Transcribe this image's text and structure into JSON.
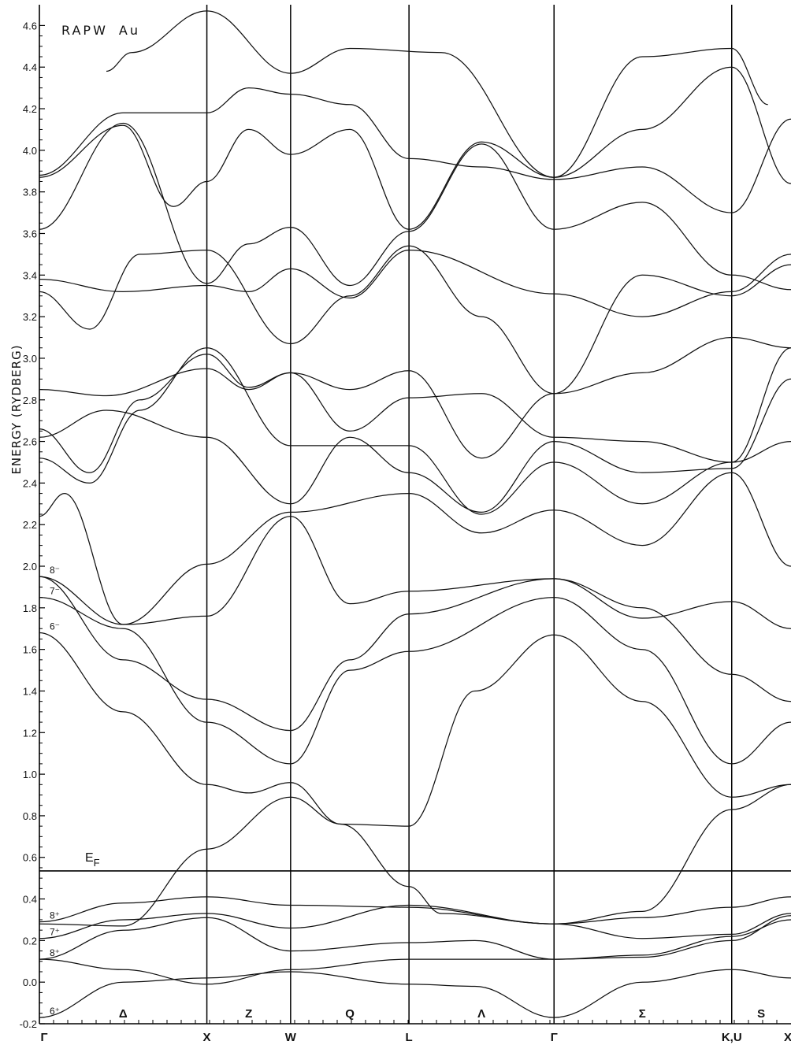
{
  "chart_data": {
    "type": "line",
    "title_lattice": "RAPW",
    "title_element": "Au",
    "ylabel": "ENERGY (RYDBERG)",
    "xlabel": "",
    "ylim": [
      -0.2,
      4.7
    ],
    "yticks": [
      "-0.2",
      "0.0",
      "0.2",
      "0.4",
      "0.6",
      "0.8",
      "1.0",
      "1.2",
      "1.4",
      "1.6",
      "1.8",
      "2.0",
      "2.2",
      "2.4",
      "2.6",
      "2.8",
      "3.0",
      "3.2",
      "3.4",
      "3.6",
      "3.8",
      "4.0",
      "4.2",
      "4.4",
      "4.6"
    ],
    "ytick_values": [
      -0.2,
      0.0,
      0.2,
      0.4,
      0.6,
      0.8,
      1.0,
      1.2,
      1.4,
      1.6,
      1.8,
      2.0,
      2.2,
      2.4,
      2.6,
      2.8,
      3.0,
      3.2,
      3.4,
      3.6,
      3.8,
      4.0,
      4.2,
      4.4,
      4.6
    ],
    "kpoints": [
      {
        "label": "Γ",
        "x": 0
      },
      {
        "label": "X",
        "x": 1
      },
      {
        "label": "W",
        "x": 1.5
      },
      {
        "label": "L",
        "x": 2.207
      },
      {
        "label": "Γ",
        "x": 3.073
      },
      {
        "label": "K,U",
        "x": 4.134
      },
      {
        "label": "X",
        "x": 4.488
      }
    ],
    "segments": [
      {
        "label": "Δ",
        "x": 0.5
      },
      {
        "label": "Z",
        "x": 1.25
      },
      {
        "label": "Q",
        "x": 1.854
      },
      {
        "label": "Λ",
        "x": 2.64
      },
      {
        "label": "Σ",
        "x": 3.6
      },
      {
        "label": "S",
        "x": 4.31
      }
    ],
    "fermi": {
      "label_main": "E",
      "label_sub": "F",
      "value": 0.535
    },
    "symmetry_labels": [
      {
        "text": "8⁻",
        "y": 1.95
      },
      {
        "text": "7⁻",
        "y": 1.85
      },
      {
        "text": "6⁻",
        "y": 1.68
      },
      {
        "text": "8⁺",
        "y": 0.29
      },
      {
        "text": "7⁺",
        "y": 0.21
      },
      {
        "text": "8⁺",
        "y": 0.11
      },
      {
        "text": "6⁺",
        "y": -0.17
      }
    ],
    "series": [
      {
        "values": [
          [
            0,
            -0.17
          ],
          [
            0.5,
            0.0
          ],
          [
            1,
            0.02
          ],
          [
            1.5,
            0.05
          ],
          [
            2.207,
            -0.01
          ],
          [
            2.6,
            -0.02
          ],
          [
            3.073,
            -0.17
          ],
          [
            3.6,
            0.0
          ],
          [
            4.134,
            0.06
          ],
          [
            4.488,
            0.02
          ]
        ]
      },
      {
        "values": [
          [
            0,
            0.11
          ],
          [
            0.5,
            0.06
          ],
          [
            1,
            -0.01
          ],
          [
            1.5,
            0.06
          ],
          [
            2.207,
            0.11
          ],
          [
            3.073,
            0.11
          ],
          [
            3.6,
            0.13
          ],
          [
            4.134,
            0.22
          ],
          [
            4.488,
            0.3
          ]
        ]
      },
      {
        "values": [
          [
            0,
            0.11
          ],
          [
            0.5,
            0.25
          ],
          [
            1,
            0.31
          ],
          [
            1.5,
            0.15
          ],
          [
            2.207,
            0.19
          ],
          [
            2.6,
            0.2
          ],
          [
            3.073,
            0.11
          ],
          [
            3.6,
            0.12
          ],
          [
            4.134,
            0.2
          ],
          [
            4.488,
            0.32
          ]
        ]
      },
      {
        "values": [
          [
            0,
            0.21
          ],
          [
            0.5,
            0.3
          ],
          [
            1,
            0.33
          ],
          [
            1.5,
            0.26
          ],
          [
            2.207,
            0.37
          ],
          [
            3.073,
            0.28
          ],
          [
            3.6,
            0.21
          ],
          [
            4.134,
            0.23
          ],
          [
            4.488,
            0.33
          ]
        ]
      },
      {
        "values": [
          [
            0,
            0.29
          ],
          [
            0.5,
            0.38
          ],
          [
            1,
            0.41
          ],
          [
            1.5,
            0.37
          ],
          [
            2.207,
            0.36
          ],
          [
            3.073,
            0.28
          ],
          [
            3.6,
            0.31
          ],
          [
            4.134,
            0.36
          ],
          [
            4.488,
            0.41
          ]
        ]
      },
      {
        "values": [
          [
            0,
            0.28
          ],
          [
            0.5,
            0.27
          ],
          [
            1,
            0.64
          ],
          [
            1.5,
            0.89
          ],
          [
            1.8,
            0.76
          ],
          [
            2.207,
            0.46
          ],
          [
            2.4,
            0.33
          ],
          [
            3.073,
            0.28
          ],
          [
            3.6,
            0.34
          ],
          [
            4.134,
            0.83
          ],
          [
            4.488,
            0.95
          ]
        ]
      },
      {
        "values": [
          [
            0,
            1.68
          ],
          [
            0.5,
            1.3
          ],
          [
            1,
            0.95
          ],
          [
            1.25,
            0.91
          ],
          [
            1.5,
            0.96
          ],
          [
            1.8,
            0.76
          ],
          [
            2.207,
            0.75
          ],
          [
            2.6,
            1.4
          ],
          [
            3.073,
            1.67
          ],
          [
            3.6,
            1.35
          ],
          [
            4.134,
            0.89
          ],
          [
            4.488,
            0.95
          ]
        ]
      },
      {
        "values": [
          [
            0,
            1.85
          ],
          [
            0.5,
            1.7
          ],
          [
            1,
            1.25
          ],
          [
            1.5,
            1.05
          ],
          [
            1.854,
            1.5
          ],
          [
            2.207,
            1.59
          ],
          [
            3.073,
            1.85
          ],
          [
            3.6,
            1.6
          ],
          [
            4.134,
            1.05
          ],
          [
            4.488,
            1.25
          ]
        ]
      },
      {
        "values": [
          [
            0,
            1.95
          ],
          [
            0.5,
            1.55
          ],
          [
            1,
            1.36
          ],
          [
            1.5,
            1.21
          ],
          [
            1.854,
            1.55
          ],
          [
            2.207,
            1.77
          ],
          [
            3.073,
            1.94
          ],
          [
            3.6,
            1.8
          ],
          [
            4.134,
            1.48
          ],
          [
            4.488,
            1.35
          ]
        ]
      },
      {
        "values": [
          [
            0,
            1.95
          ],
          [
            0.5,
            1.72
          ],
          [
            1,
            1.76
          ],
          [
            1.5,
            2.24
          ],
          [
            1.854,
            1.82
          ],
          [
            2.207,
            1.88
          ],
          [
            3.073,
            1.94
          ],
          [
            3.6,
            1.75
          ],
          [
            4.134,
            1.83
          ],
          [
            4.488,
            1.7
          ]
        ]
      },
      {
        "values": [
          [
            0,
            2.24
          ],
          [
            0.15,
            2.35
          ],
          [
            0.5,
            1.72
          ],
          [
            1,
            2.01
          ],
          [
            1.5,
            2.26
          ],
          [
            2.207,
            2.35
          ],
          [
            2.64,
            2.16
          ],
          [
            3.073,
            2.27
          ],
          [
            3.6,
            2.1
          ],
          [
            4.134,
            2.45
          ],
          [
            4.488,
            2.0
          ]
        ]
      },
      {
        "values": [
          [
            0,
            2.52
          ],
          [
            0.3,
            2.4
          ],
          [
            0.6,
            2.75
          ],
          [
            1,
            3.05
          ],
          [
            1.5,
            2.58
          ],
          [
            2.207,
            2.58
          ],
          [
            2.64,
            2.25
          ],
          [
            3.073,
            2.5
          ],
          [
            3.6,
            2.3
          ],
          [
            4.134,
            2.5
          ],
          [
            4.488,
            2.6
          ]
        ]
      },
      {
        "values": [
          [
            0,
            2.62
          ],
          [
            0.4,
            2.75
          ],
          [
            1,
            2.62
          ],
          [
            1.5,
            2.3
          ],
          [
            1.854,
            2.62
          ],
          [
            2.207,
            2.45
          ],
          [
            2.64,
            2.26
          ],
          [
            3.073,
            2.6
          ],
          [
            3.6,
            2.45
          ],
          [
            4.134,
            2.47
          ],
          [
            4.488,
            2.9
          ]
        ]
      },
      {
        "values": [
          [
            0,
            2.66
          ],
          [
            0.3,
            2.45
          ],
          [
            0.6,
            2.8
          ],
          [
            1,
            3.02
          ],
          [
            1.25,
            2.86
          ],
          [
            1.5,
            2.93
          ],
          [
            1.854,
            2.65
          ],
          [
            2.207,
            2.81
          ],
          [
            2.64,
            2.83
          ],
          [
            3.073,
            2.62
          ],
          [
            3.6,
            2.6
          ],
          [
            4.134,
            2.5
          ],
          [
            4.488,
            3.05
          ]
        ]
      },
      {
        "values": [
          [
            0,
            2.85
          ],
          [
            0.4,
            2.82
          ],
          [
            1,
            2.95
          ],
          [
            1.25,
            2.85
          ],
          [
            1.5,
            2.93
          ],
          [
            1.854,
            2.85
          ],
          [
            2.207,
            2.94
          ],
          [
            2.64,
            2.52
          ],
          [
            3.073,
            2.83
          ],
          [
            3.6,
            2.93
          ],
          [
            4.134,
            3.1
          ],
          [
            4.488,
            3.05
          ]
        ]
      },
      {
        "values": [
          [
            0,
            3.32
          ],
          [
            0.3,
            3.14
          ],
          [
            0.6,
            3.5
          ],
          [
            1,
            3.52
          ],
          [
            1.5,
            3.07
          ],
          [
            1.854,
            3.3
          ],
          [
            2.207,
            3.54
          ],
          [
            2.64,
            3.2
          ],
          [
            3.073,
            2.83
          ],
          [
            3.6,
            3.4
          ],
          [
            4.134,
            3.3
          ],
          [
            4.488,
            3.45
          ]
        ]
      },
      {
        "values": [
          [
            0,
            3.38
          ],
          [
            0.5,
            3.32
          ],
          [
            1,
            3.35
          ],
          [
            1.25,
            3.32
          ],
          [
            1.5,
            3.43
          ],
          [
            1.854,
            3.29
          ],
          [
            2.207,
            3.52
          ],
          [
            3.073,
            3.31
          ],
          [
            3.6,
            3.2
          ],
          [
            4.134,
            3.32
          ],
          [
            4.488,
            3.5
          ]
        ]
      },
      {
        "values": [
          [
            0,
            3.62
          ],
          [
            0.5,
            4.13
          ],
          [
            1,
            3.36
          ],
          [
            1.25,
            3.55
          ],
          [
            1.5,
            3.63
          ],
          [
            1.854,
            3.35
          ],
          [
            2.207,
            3.61
          ],
          [
            2.64,
            4.03
          ],
          [
            3.073,
            3.62
          ],
          [
            3.6,
            3.75
          ],
          [
            4.134,
            3.4
          ],
          [
            4.488,
            3.33
          ]
        ]
      },
      {
        "values": [
          [
            0,
            3.87
          ],
          [
            0.5,
            4.12
          ],
          [
            0.8,
            3.73
          ],
          [
            1,
            3.85
          ],
          [
            1.25,
            4.1
          ],
          [
            1.5,
            3.98
          ],
          [
            1.854,
            4.1
          ],
          [
            2.207,
            3.62
          ],
          [
            2.64,
            4.04
          ],
          [
            3.073,
            3.87
          ],
          [
            3.6,
            4.1
          ],
          [
            4.134,
            4.4
          ],
          [
            4.488,
            3.84
          ]
        ]
      },
      {
        "values": [
          [
            0,
            3.88
          ],
          [
            0.5,
            4.18
          ],
          [
            1,
            4.18
          ],
          [
            1.25,
            4.3
          ],
          [
            1.5,
            4.27
          ],
          [
            1.854,
            4.22
          ],
          [
            2.207,
            3.96
          ],
          [
            2.64,
            3.92
          ],
          [
            3.073,
            3.86
          ],
          [
            3.6,
            3.92
          ],
          [
            4.134,
            3.7
          ],
          [
            4.488,
            4.15
          ]
        ]
      },
      {
        "values": [
          [
            0.4,
            4.38
          ],
          [
            0.55,
            4.47
          ],
          [
            1,
            4.67
          ],
          [
            1.5,
            4.37
          ],
          [
            1.854,
            4.49
          ],
          [
            2.4,
            4.47
          ],
          [
            3.073,
            3.87
          ],
          [
            3.6,
            4.45
          ],
          [
            4.134,
            4.49
          ],
          [
            4.35,
            4.22
          ]
        ]
      }
    ]
  }
}
